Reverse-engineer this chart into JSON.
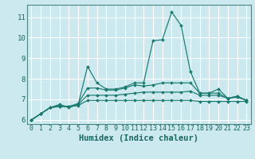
{
  "xlabel": "Humidex (Indice chaleur)",
  "bg_color": "#cce9f0",
  "grid_color": "#ffffff",
  "line_color": "#1a7a6e",
  "xlim": [
    -0.5,
    23.5
  ],
  "ylim": [
    5.8,
    11.6
  ],
  "yticks": [
    6,
    7,
    8,
    9,
    10,
    11
  ],
  "xticks": [
    0,
    1,
    2,
    3,
    4,
    5,
    6,
    7,
    8,
    9,
    10,
    11,
    12,
    13,
    14,
    15,
    16,
    17,
    18,
    19,
    20,
    21,
    22,
    23
  ],
  "lines": [
    [
      6.0,
      6.3,
      6.6,
      6.75,
      6.6,
      6.75,
      8.6,
      7.8,
      7.5,
      7.5,
      7.6,
      7.8,
      7.8,
      9.85,
      9.9,
      11.25,
      10.6,
      8.35,
      7.3,
      7.3,
      7.5,
      7.05,
      7.15,
      6.95
    ],
    [
      6.0,
      6.3,
      6.6,
      6.7,
      6.65,
      6.8,
      7.55,
      7.55,
      7.45,
      7.45,
      7.55,
      7.7,
      7.65,
      7.7,
      7.8,
      7.8,
      7.8,
      7.8,
      7.3,
      7.3,
      7.3,
      7.05,
      7.15,
      6.95
    ],
    [
      6.0,
      6.3,
      6.6,
      6.65,
      6.65,
      6.75,
      7.2,
      7.2,
      7.2,
      7.2,
      7.25,
      7.3,
      7.35,
      7.35,
      7.35,
      7.35,
      7.35,
      7.4,
      7.2,
      7.2,
      7.2,
      7.05,
      7.1,
      6.95
    ],
    [
      6.0,
      6.3,
      6.6,
      6.65,
      6.65,
      6.7,
      6.95,
      6.95,
      6.95,
      6.95,
      6.95,
      6.95,
      6.95,
      6.95,
      6.95,
      6.95,
      6.95,
      6.95,
      6.9,
      6.9,
      6.9,
      6.9,
      6.9,
      6.9
    ]
  ],
  "tick_color": "#1a6660",
  "xlabel_fontsize": 7.5,
  "tick_fontsize": 6.0
}
